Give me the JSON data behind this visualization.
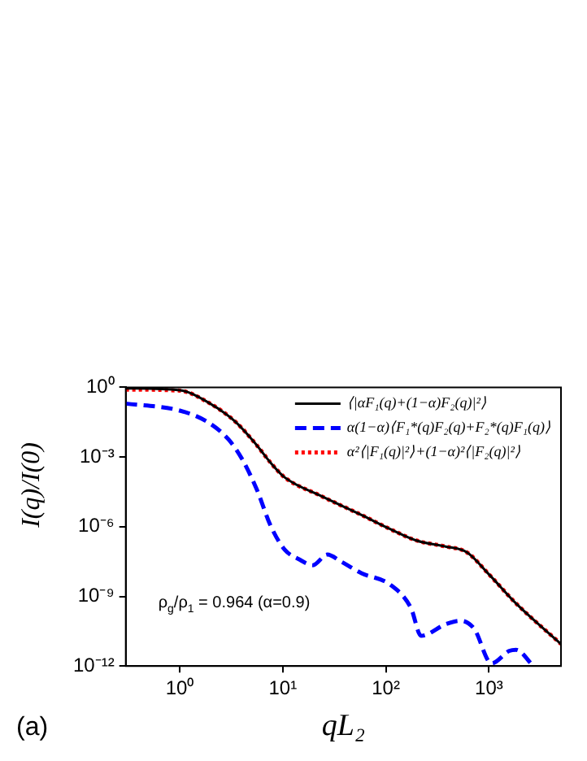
{
  "chart_data": {
    "type": "line",
    "ylabel": "I(q)/I(0)",
    "xlabel": "qL₂",
    "log": "xy",
    "grid": false,
    "legend": "top right",
    "marker": "none",
    "xlim": [
      0.3,
      5000
    ],
    "ylim": [
      1e-12,
      1
    ],
    "xticks": [
      {
        "value": 1,
        "label": "10⁰"
      },
      {
        "value": 10,
        "label": "10¹"
      },
      {
        "value": 100,
        "label": "10²"
      },
      {
        "value": 1000,
        "label": "10³"
      }
    ],
    "yticks": [
      {
        "value": 1e-12,
        "label": "10⁻¹²"
      },
      {
        "value": 1e-09,
        "label": "10⁻⁹"
      },
      {
        "value": 1e-06,
        "label": "10⁻⁶"
      },
      {
        "value": 0.001,
        "label": "10⁻³"
      },
      {
        "value": 1,
        "label": "10⁰"
      }
    ],
    "annotations": [
      {
        "text": "ρ$_{g}$/ρ$_{1}$ = 0.964 (α=0.9)"
      },
      {
        "text": "(a)"
      }
    ],
    "series": [
      {
        "name": "⟨|αF₁(q)+(1−α)F₂(q)|²⟩",
        "color": "#000000",
        "line_style": "solid",
        "x": [
          0.3,
          1,
          1.87,
          3.5,
          5.6,
          7.7,
          10.5,
          23,
          58,
          110,
          200,
          380,
          610,
          1000,
          1830,
          5000
        ],
        "values": [
          0.9,
          0.75,
          0.23,
          0.032,
          0.0032,
          0.00054,
          0.00013,
          2.2e-05,
          3.2e-06,
          7.9e-07,
          2.5e-07,
          1.4e-07,
          7.9e-08,
          8.9e-09,
          5e-10,
          8.9e-12
        ]
      },
      {
        "name": "α(1−α)⟨F₁*(q)F₂(q)+F₂*(q)F₁(q)⟩",
        "color": "#0000ff",
        "line_style": "dashed",
        "x": [
          0.3,
          1,
          1.87,
          3,
          4.1,
          5.6,
          7.7,
          10.5,
          14.3,
          19.6,
          27,
          36.6,
          58,
          110,
          175,
          220,
          380,
          530,
          720,
          1060,
          1580,
          1830,
          2700
        ],
        "values": [
          0.2,
          0.1,
          0.032,
          0.0055,
          0.00072,
          4e-05,
          1e-06,
          1e-07,
          4e-08,
          2.2e-08,
          6.3e-08,
          3.2e-08,
          1e-08,
          3.2e-09,
          3.2e-10,
          2e-11,
          6.3e-11,
          8.9e-11,
          4e-11,
          1.3e-12,
          4.5e-12,
          5e-12,
          1e-12
        ]
      },
      {
        "name": "α²⟨|F₁(q)|²⟩+(1−α)²⟨|F₂(q)|²⟩",
        "color": "#ff0000",
        "line_style": "dotted",
        "x": [
          0.3,
          1,
          1.87,
          3.5,
          5.6,
          7.7,
          10.5,
          23,
          58,
          110,
          200,
          380,
          610,
          1000,
          1830,
          5000
        ],
        "values": [
          0.8,
          0.72,
          0.23,
          0.032,
          0.0032,
          0.00054,
          0.00013,
          2.2e-05,
          3.2e-06,
          7.9e-07,
          2.5e-07,
          1.4e-07,
          7.9e-08,
          8.9e-09,
          5e-10,
          8.9e-12
        ]
      }
    ]
  }
}
